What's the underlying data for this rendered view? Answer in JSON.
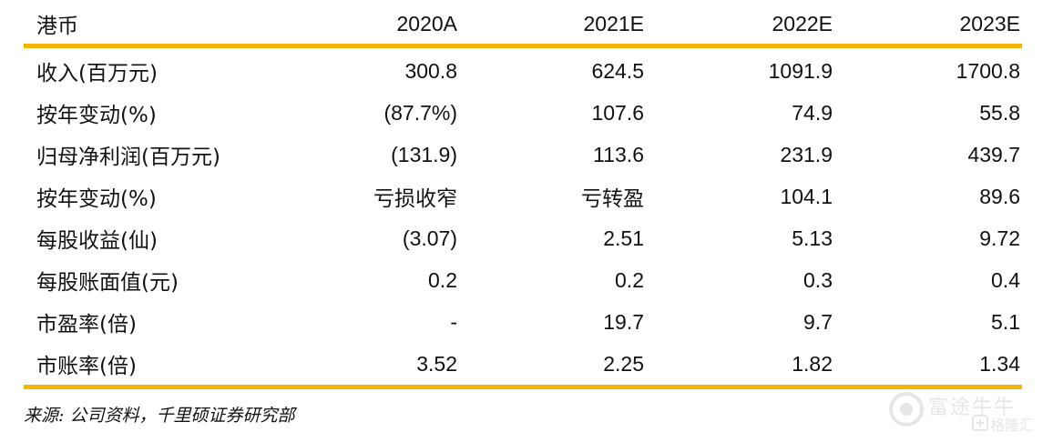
{
  "table": {
    "header": [
      "港币",
      "2020A",
      "2021E",
      "2022E",
      "2023E"
    ],
    "rows": [
      [
        "收入(百万元)",
        "300.8",
        "624.5",
        "1091.9",
        "1700.8"
      ],
      [
        "按年变动(%)",
        "(87.7%)",
        "107.6",
        "74.9",
        "55.8"
      ],
      [
        "归母净利润(百万元)",
        "(131.9)",
        "113.6",
        "231.9",
        "439.7"
      ],
      [
        "按年变动(%)",
        "亏损收窄",
        "亏转盈",
        "104.1",
        "89.6"
      ],
      [
        "每股收益(仙)",
        "(3.07)",
        "2.51",
        "5.13",
        "9.72"
      ],
      [
        "每股账面值(元)",
        "0.2",
        "0.2",
        "0.3",
        "0.4"
      ],
      [
        "市盈率(倍)",
        "-",
        "19.7",
        "9.7",
        "5.1"
      ],
      [
        "市账率(倍)",
        "3.52",
        "2.25",
        "1.82",
        "1.34"
      ]
    ]
  },
  "source": "来源: 公司资料，千里硕证券研究部",
  "watermark": {
    "brand": "富途牛牛",
    "sub": "格隆汇"
  },
  "colors": {
    "rule": "#f5b400",
    "text": "#111111"
  }
}
